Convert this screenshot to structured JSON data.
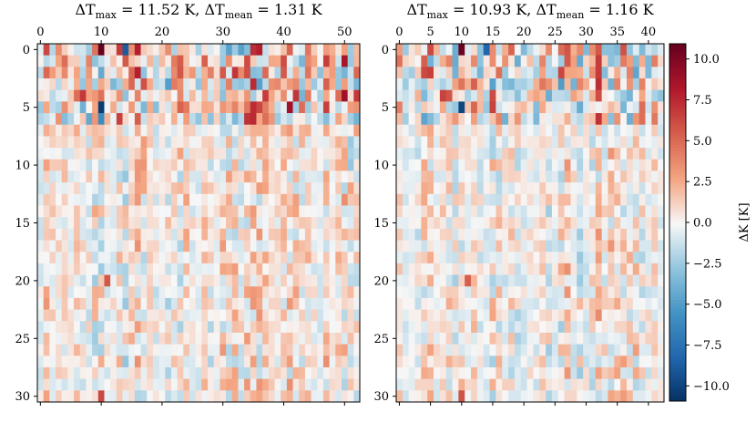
{
  "chart_data": [
    {
      "type": "heatmap",
      "title": "ΔT_max = 11.52 K,  ΔT_mean = 1.31 K",
      "title_parts": {
        "max_label": "ΔT",
        "max_sub": "max",
        "max_value": "= 11.52 K,",
        "mean_label": "ΔT",
        "mean_sub": "mean",
        "mean_value": "= 1.31 K"
      },
      "n_cols": 53,
      "n_rows": 31,
      "x_ticks": [
        0,
        10,
        20,
        30,
        40,
        50
      ],
      "y_ticks": [
        0,
        5,
        10,
        15,
        20,
        25,
        30
      ],
      "x_axis_position": "top",
      "delta_t_max": 11.52,
      "delta_t_mean": 1.31,
      "seed": 7
    },
    {
      "type": "heatmap",
      "title": "ΔT_max = 10.93 K,  ΔT_mean = 1.16 K",
      "title_parts": {
        "max_label": "ΔT",
        "max_sub": "max",
        "max_value": "= 10.93 K,",
        "mean_label": "ΔT",
        "mean_sub": "mean",
        "mean_value": "= 1.16 K"
      },
      "n_cols": 43,
      "n_rows": 31,
      "x_ticks": [
        0,
        5,
        10,
        15,
        20,
        25,
        30,
        35,
        40
      ],
      "y_ticks": [
        0,
        5,
        10,
        15,
        20,
        25,
        30
      ],
      "x_axis_position": "top",
      "delta_t_max": 10.93,
      "delta_t_mean": 1.16,
      "seed": 13
    }
  ],
  "colorbar": {
    "label": "ΔK [K]",
    "vmin": -10.93,
    "vmax": 10.93,
    "ticks": [
      -10.0,
      -7.5,
      -5.0,
      -2.5,
      0.0,
      2.5,
      5.0,
      7.5,
      10.0
    ],
    "tick_labels": [
      "−10.0",
      "−7.5",
      "−5.0",
      "−2.5",
      "0.0",
      "2.5",
      "5.0",
      "7.5",
      "10.0"
    ],
    "colormap": "RdBu_r"
  }
}
